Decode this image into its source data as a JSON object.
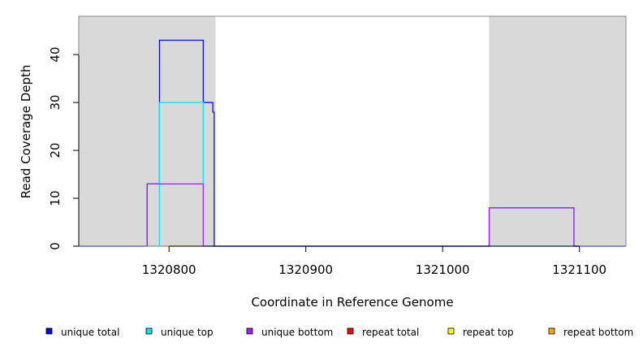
{
  "chart_data": {
    "type": "line",
    "xlabel": "Coordinate in Reference Genome",
    "ylabel": "Read Coverage Depth",
    "xlim": [
      1320734,
      1321134
    ],
    "ylim": [
      0,
      48
    ],
    "x_ticks": [
      1320800,
      1320900,
      1321000,
      1321100
    ],
    "x_tick_labels": [
      "1320800",
      "1320900",
      "1321000",
      "1321100"
    ],
    "y_ticks": [
      0,
      10,
      20,
      30,
      40
    ],
    "y_tick_labels": [
      "0",
      "10",
      "20",
      "30",
      "40"
    ],
    "shaded_regions": [
      {
        "x0": 1320734,
        "x1": 1320834,
        "color": "#d9d9d9"
      },
      {
        "x0": 1321034,
        "x1": 1321134,
        "color": "#d9d9d9"
      }
    ],
    "series": [
      {
        "name": "unique total",
        "color": "#0000ff",
        "points": [
          [
            1320734,
            0
          ],
          [
            1320784,
            0
          ],
          [
            1320784,
            13
          ],
          [
            1320793,
            13
          ],
          [
            1320793,
            43
          ],
          [
            1320825,
            43
          ],
          [
            1320825,
            30
          ],
          [
            1320832,
            30
          ],
          [
            1320832,
            28
          ],
          [
            1320833,
            28
          ],
          [
            1320833,
            0
          ],
          [
            1321034,
            0
          ],
          [
            1321034,
            8
          ],
          [
            1321096,
            8
          ],
          [
            1321096,
            0
          ],
          [
            1321134,
            0
          ]
        ]
      },
      {
        "name": "unique top",
        "color": "#00e5ee",
        "points": [
          [
            1320734,
            0
          ],
          [
            1320793,
            0
          ],
          [
            1320793,
            30
          ],
          [
            1320825,
            30
          ],
          [
            1320825,
            0
          ],
          [
            1321134,
            0
          ]
        ]
      },
      {
        "name": "unique bottom",
        "color": "#a020f0",
        "points": [
          [
            1320734,
            0
          ],
          [
            1320784,
            0
          ],
          [
            1320784,
            13
          ],
          [
            1320825,
            13
          ],
          [
            1320825,
            0
          ],
          [
            1321034,
            0
          ],
          [
            1321034,
            8
          ],
          [
            1321096,
            8
          ],
          [
            1321096,
            0
          ],
          [
            1321134,
            0
          ]
        ]
      },
      {
        "name": "repeat total",
        "color": "#ff0000",
        "points": []
      },
      {
        "name": "repeat top",
        "color": "#ffff00",
        "points": []
      },
      {
        "name": "repeat bottom",
        "color": "#ffa500",
        "points": [
          [
            1320793,
            0
          ],
          [
            1320825,
            0
          ]
        ]
      }
    ],
    "legend_position": "bottom"
  }
}
